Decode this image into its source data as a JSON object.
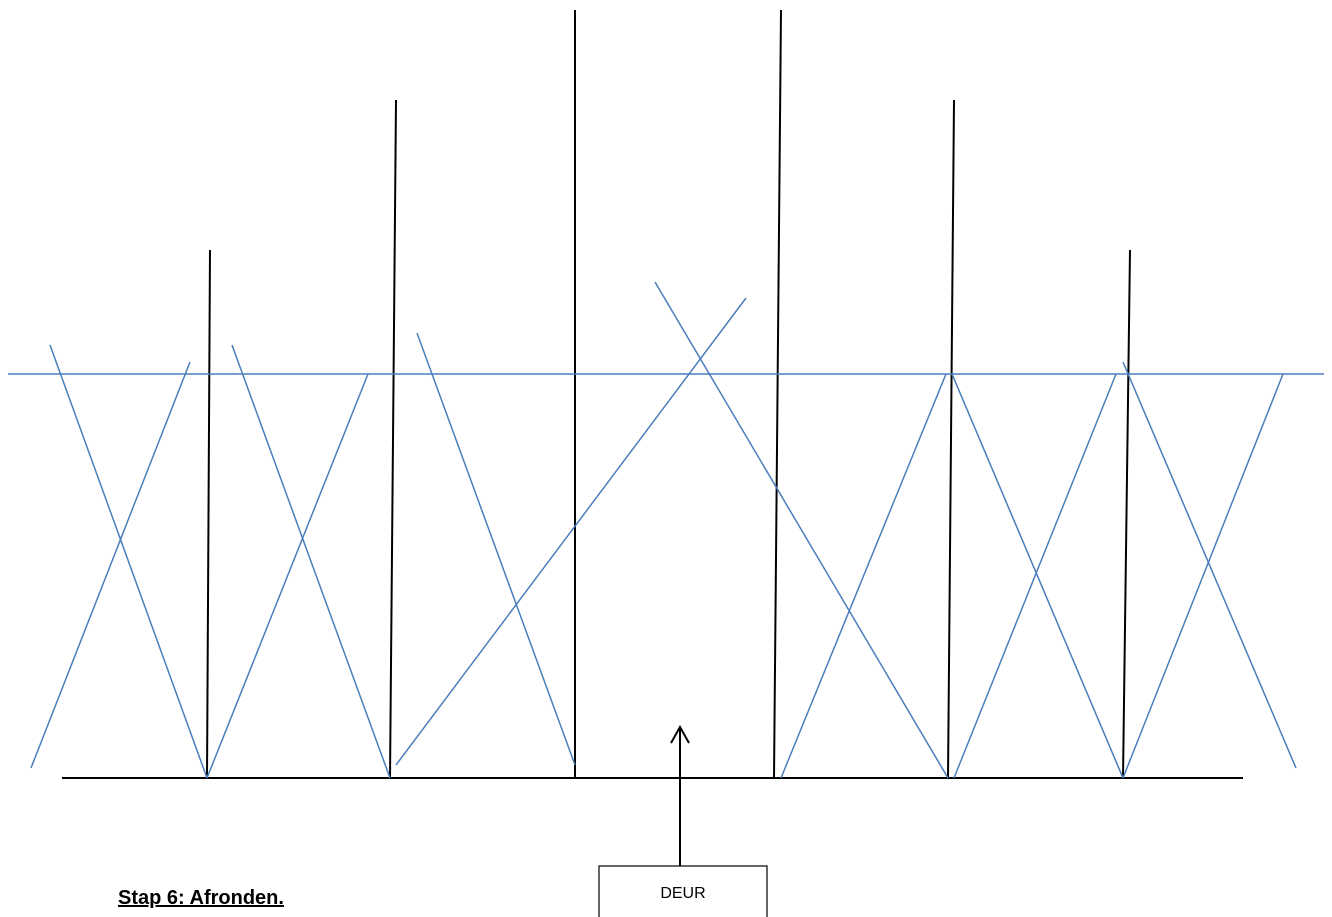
{
  "title": "Stap 6: Afronden.",
  "door_label": "DEUR",
  "colors": {
    "structure": "#000000",
    "cross_lines": "#4a7ebb",
    "background": "#ffffff"
  }
}
